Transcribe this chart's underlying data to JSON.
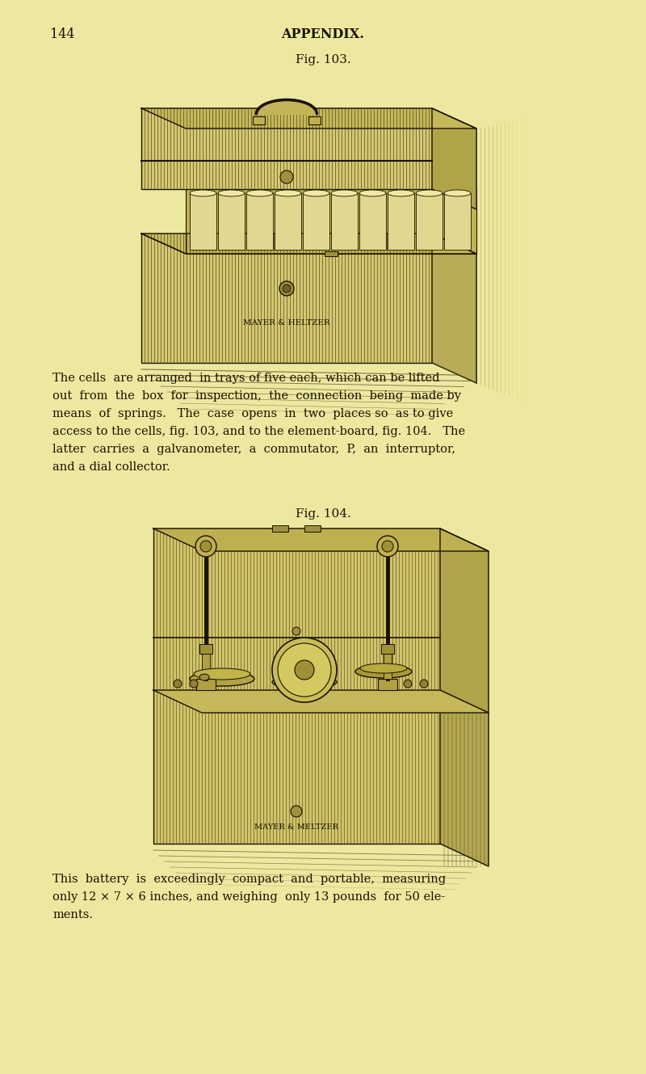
{
  "bg_color": "#ede8a0",
  "text_color": "#1a1200",
  "dark_ink": "#1a1200",
  "mid_ink": "#4a4020",
  "light_ink": "#7a7040",
  "page_number": "144",
  "header": "APPENDIX.",
  "fig103_label": "Fig. 103.",
  "fig104_label": "Fig. 104.",
  "para1": [
    "The cells  are arranged  in trays of five each, which can be lifted",
    "out  from  the  box  for  inspection,  the  connection  being  made by",
    "means  of  springs.   The  case  opens  in  two  places so  as to give",
    "access to the cells, fig. 103, and to the element-board, fig. 104.   The",
    "latter  carries  a  galvanometer,  a  commutator,  P,  an  interruptor,",
    "and a dial collector."
  ],
  "para2": [
    "This  battery  is  exceedingly  compact  and  portable,  measuring",
    "only 12 × 7 × 6 inches, and weighing  only 13 pounds  for 50 ele-",
    "ments."
  ]
}
